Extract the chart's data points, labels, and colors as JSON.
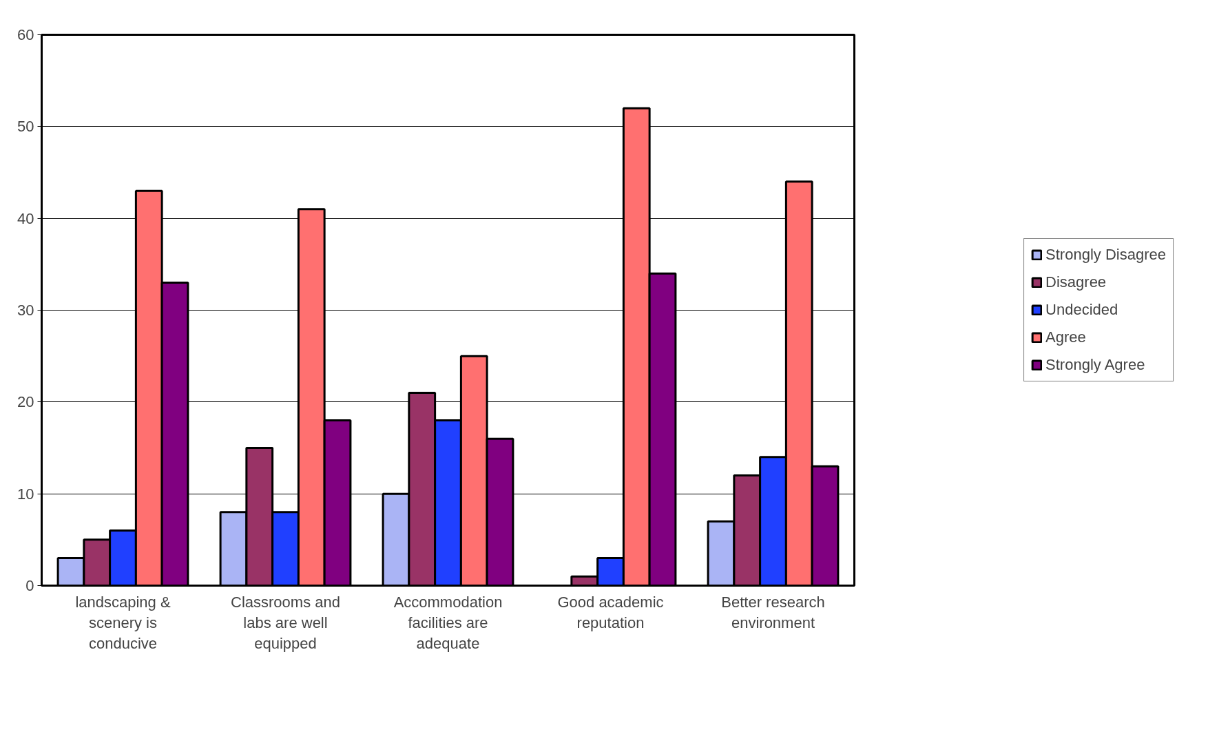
{
  "chart_data": {
    "type": "bar",
    "categories": [
      "landscaping & scenery is conducive",
      "Classrooms and labs are well equipped",
      "Accommodation facilities are adequate",
      "Good academic reputation",
      "Better research environment"
    ],
    "series": [
      {
        "name": "Strongly Disagree",
        "color": "#aab4f5",
        "values": [
          3,
          8,
          10,
          null,
          7
        ]
      },
      {
        "name": "Disagree",
        "color": "#993366",
        "values": [
          5,
          15,
          21,
          1,
          12
        ]
      },
      {
        "name": "Undecided",
        "color": "#2040ff",
        "values": [
          6,
          8,
          18,
          3,
          14
        ]
      },
      {
        "name": "Agree",
        "color": "#ff7070",
        "values": [
          43,
          41,
          25,
          52,
          44
        ]
      },
      {
        "name": "Strongly Agree",
        "color": "#800080",
        "values": [
          33,
          18,
          16,
          34,
          13
        ]
      }
    ],
    "ylim": [
      0,
      60
    ],
    "yticks": [
      0,
      10,
      20,
      30,
      40,
      50,
      60
    ],
    "grid": "y",
    "legend": "right"
  }
}
